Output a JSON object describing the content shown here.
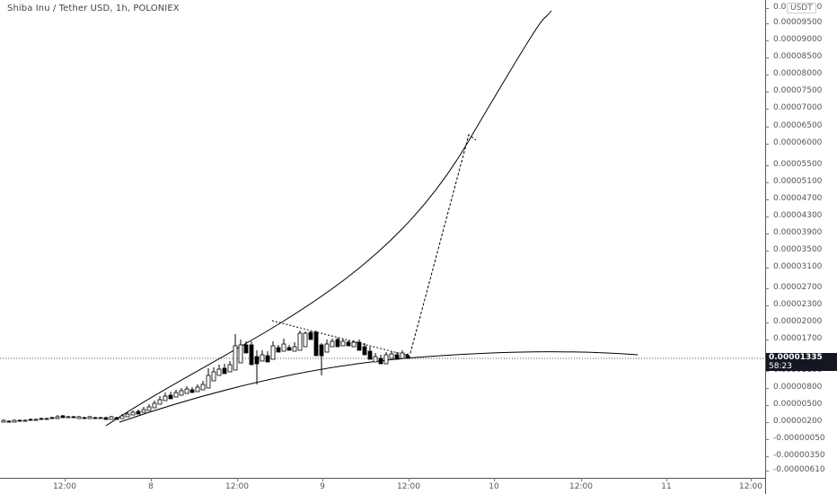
{
  "header": {
    "title": "Shiba Inu / Tether USD, 1h, POLONIEX",
    "currency": "USDT"
  },
  "price_axis": {
    "labels": [
      "0.00010300",
      "0.00009500",
      "0.00009000",
      "0.00008500",
      "0.00008000",
      "0.00007500",
      "0.00007000",
      "0.00006500",
      "0.00006000",
      "0.00005500",
      "0.00005100",
      "0.00004700",
      "0.00004300",
      "0.00003900",
      "0.00003500",
      "0.00003100",
      "0.00002700",
      "0.00002300",
      "0.00002000",
      "0.00001700",
      "0.00001100",
      "0.00000800",
      "0.00000500",
      "0.00000200",
      "-0.00000050",
      "-0.00000350",
      "-0.00000610"
    ]
  },
  "time_axis": {
    "labels": [
      "12:00",
      "8",
      "12:00",
      "9",
      "12:00",
      "10",
      "12:00",
      "11",
      "12:00"
    ]
  },
  "last_price": {
    "price": "0.00001335",
    "countdown": "58:23"
  },
  "colors": {
    "up_candle": "#ffffff",
    "down_candle": "#000000",
    "candle_border": "#000000",
    "drawing": "#000000",
    "price_line": "#555555"
  }
}
